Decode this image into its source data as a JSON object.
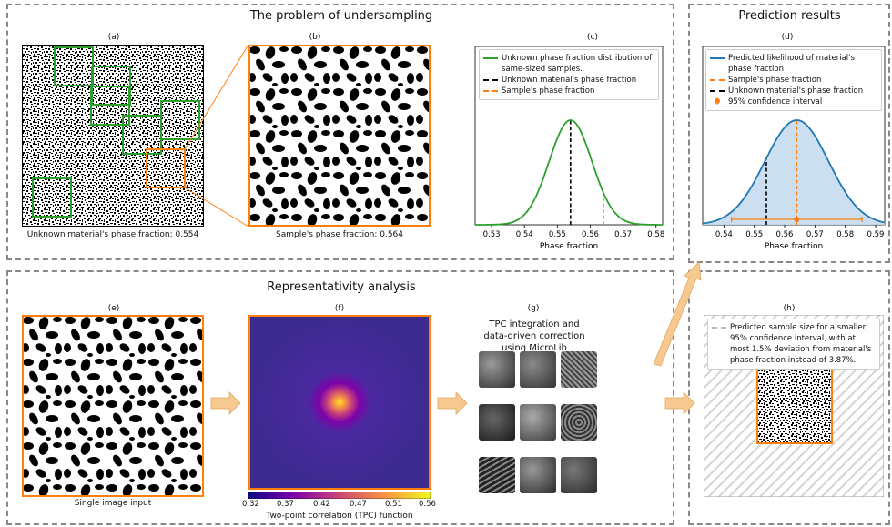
{
  "top_left": {
    "title": "The problem of undersampling",
    "panel_a": {
      "label": "(a)",
      "caption": "Unknown material's phase fraction: 0.554"
    },
    "panel_b": {
      "label": "(b)",
      "caption": "Sample's phase fraction: 0.564"
    },
    "panel_c": {
      "label": "(c)",
      "legend": [
        "Unknown phase fraction distribution of same-sized samples.",
        "Unknown material's phase fraction",
        "Sample's phase fraction"
      ],
      "xticks": [
        "0.53",
        "0.54",
        "0.55",
        "0.56",
        "0.57",
        "0.58"
      ],
      "xlabel": "Phase fraction"
    }
  },
  "top_right": {
    "title": "Prediction results",
    "panel_d": {
      "label": "(d)",
      "legend": [
        "Predicted likelihood of material's phase fraction",
        "Sample's phase fraction",
        "Unknown material's phase fraction",
        "95% confidence interval"
      ],
      "xticks": [
        "0.54",
        "0.55",
        "0.56",
        "0.57",
        "0.58",
        "0.59"
      ],
      "xlabel": "Phase fraction"
    }
  },
  "bottom_left": {
    "title": "Representativity analysis",
    "panel_e": {
      "label": "(e)",
      "caption": "Single image input"
    },
    "panel_f": {
      "label": "(f)",
      "colorbar_ticks": [
        "0.32",
        "0.37",
        "0.42",
        "0.47",
        "0.51",
        "0.56"
      ],
      "caption": "Two-point correlation (TPC) function"
    },
    "panel_g": {
      "label": "(g)",
      "text": "TPC integration and data-driven correction using MicroLib"
    }
  },
  "bottom_right": {
    "panel_h": {
      "label": "(h)",
      "legend": "Predicted sample size for a smaller 95% confidence interval, with at most 1.5% deviation from material's phase fraction instead of 3.87%."
    }
  },
  "colors": {
    "green": "#2ca02c",
    "orange": "#ff7f0e",
    "blue": "#1f77b4",
    "fill_blue": "#c6dbef",
    "arrow": "#f5c98f"
  },
  "chart_data": [
    {
      "type": "line",
      "title": "",
      "xlabel": "Phase fraction",
      "xlim": [
        0.525,
        0.582
      ],
      "series": [
        {
          "name": "Unknown phase fraction distribution of same-sized samples.",
          "kind": "normal",
          "mean": 0.554,
          "std": 0.0065
        }
      ],
      "vlines": [
        {
          "name": "Unknown material's phase fraction",
          "x": 0.554
        },
        {
          "name": "Sample's phase fraction",
          "x": 0.564
        }
      ]
    },
    {
      "type": "area",
      "title": "",
      "xlabel": "Phase fraction",
      "xlim": [
        0.533,
        0.593
      ],
      "series": [
        {
          "name": "Predicted likelihood of material's phase fraction",
          "kind": "normal",
          "mean": 0.564,
          "std": 0.0105
        }
      ],
      "vlines": [
        {
          "name": "Sample's phase fraction",
          "x": 0.564
        },
        {
          "name": "Unknown material's phase fraction",
          "x": 0.554
        }
      ],
      "confidence_interval": {
        "name": "95% confidence interval",
        "low": 0.5425,
        "high": 0.5855,
        "center": 0.564
      }
    }
  ]
}
